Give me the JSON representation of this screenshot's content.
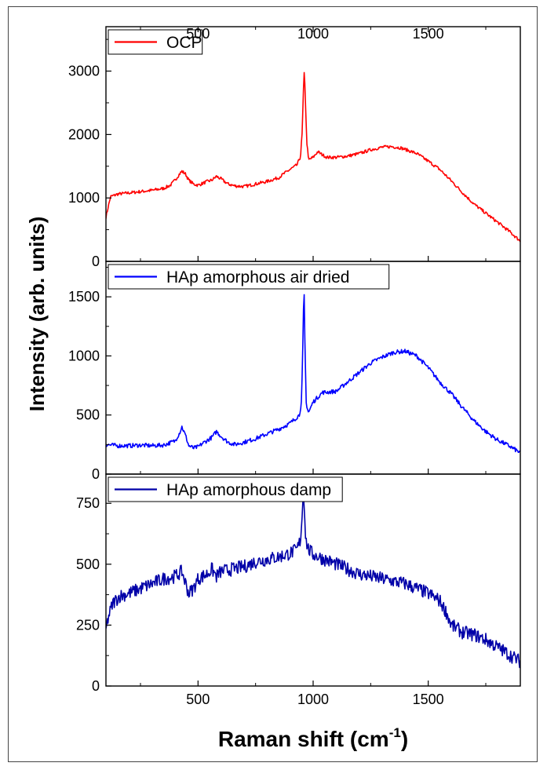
{
  "chart_data": {
    "type": "line",
    "xlabel_main": "Raman shift (cm",
    "xlabel_sup": "-1",
    "xlabel_close": ")",
    "ylabel": "Intensity (arb. units)",
    "xlim": [
      100,
      1900
    ],
    "xticks": [
      500,
      1000,
      1500
    ],
    "top_axis_ticks": true,
    "grid": false,
    "legend_position": "top-left",
    "panels": [
      {
        "name": "OCP",
        "color": "#ff0000",
        "ylim": [
          0,
          3700
        ],
        "yticks": [
          0,
          1000,
          2000,
          3000
        ],
        "noise": 25,
        "x": [
          100,
          120,
          150,
          200,
          250,
          300,
          350,
          380,
          400,
          420,
          430,
          445,
          460,
          480,
          500,
          520,
          540,
          560,
          580,
          600,
          630,
          660,
          700,
          750,
          800,
          850,
          880,
          900,
          930,
          945,
          952,
          958,
          962,
          966,
          972,
          980,
          1000,
          1020,
          1040,
          1060,
          1100,
          1150,
          1200,
          1250,
          1300,
          1340,
          1380,
          1420,
          1450,
          1500,
          1550,
          1600,
          1650,
          1700,
          1750,
          1800,
          1850,
          1900
        ],
        "y": [
          700,
          1020,
          1060,
          1080,
          1100,
          1120,
          1150,
          1200,
          1280,
          1380,
          1420,
          1380,
          1280,
          1220,
          1200,
          1230,
          1260,
          1280,
          1340,
          1300,
          1220,
          1190,
          1180,
          1220,
          1260,
          1320,
          1400,
          1450,
          1520,
          1650,
          2000,
          2700,
          3050,
          2600,
          1900,
          1600,
          1640,
          1730,
          1680,
          1640,
          1640,
          1660,
          1700,
          1760,
          1800,
          1810,
          1790,
          1740,
          1700,
          1580,
          1450,
          1270,
          1080,
          900,
          760,
          620,
          480,
          320
        ]
      },
      {
        "name": "HAp amorphous air dried",
        "color": "#0000ff",
        "ylim": [
          0,
          1800
        ],
        "yticks": [
          0,
          500,
          1000,
          1500
        ],
        "noise": 18,
        "x": [
          100,
          150,
          200,
          250,
          300,
          350,
          400,
          420,
          430,
          445,
          460,
          480,
          500,
          520,
          560,
          580,
          600,
          630,
          660,
          700,
          750,
          800,
          850,
          900,
          940,
          950,
          956,
          960,
          964,
          970,
          980,
          1000,
          1040,
          1100,
          1150,
          1200,
          1250,
          1300,
          1350,
          1400,
          1450,
          1500,
          1550,
          1600,
          1650,
          1700,
          1750,
          1800,
          1850,
          1900
        ],
        "y": [
          250,
          240,
          240,
          245,
          240,
          245,
          280,
          350,
          400,
          330,
          240,
          220,
          230,
          260,
          310,
          360,
          320,
          270,
          250,
          270,
          300,
          340,
          380,
          430,
          500,
          620,
          1150,
          1620,
          1150,
          600,
          520,
          610,
          690,
          700,
          780,
          860,
          940,
          990,
          1030,
          1040,
          1000,
          900,
          780,
          680,
          560,
          450,
          360,
          290,
          240,
          180
        ]
      },
      {
        "name": "HAp amorphous damp",
        "color": "#0000a8",
        "ylim": [
          0,
          870
        ],
        "yticks": [
          0,
          250,
          500,
          750
        ],
        "noise": 28,
        "x": [
          100,
          110,
          130,
          160,
          200,
          250,
          300,
          350,
          400,
          430,
          460,
          480,
          500,
          540,
          560,
          580,
          600,
          650,
          700,
          750,
          800,
          850,
          900,
          930,
          945,
          952,
          958,
          962,
          968,
          980,
          1000,
          1050,
          1100,
          1150,
          1200,
          1250,
          1300,
          1350,
          1400,
          1450,
          1500,
          1550,
          1580,
          1600,
          1650,
          1700,
          1750,
          1800,
          1850,
          1900
        ],
        "y": [
          230,
          280,
          340,
          370,
          380,
          400,
          420,
          440,
          450,
          470,
          380,
          400,
          440,
          460,
          480,
          450,
          470,
          480,
          490,
          510,
          520,
          530,
          545,
          560,
          600,
          700,
          800,
          740,
          600,
          560,
          540,
          520,
          500,
          480,
          460,
          450,
          440,
          430,
          420,
          400,
          380,
          350,
          300,
          250,
          220,
          210,
          190,
          160,
          130,
          100
        ]
      }
    ]
  }
}
